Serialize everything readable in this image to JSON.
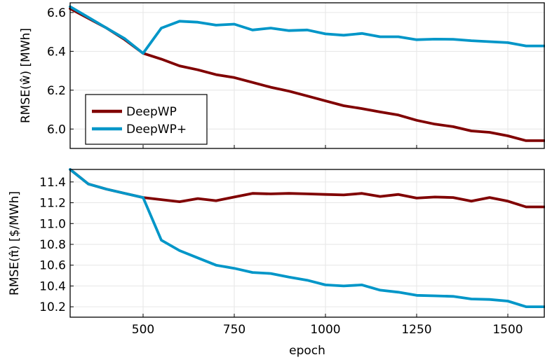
{
  "chart_data": [
    {
      "type": "line",
      "title": "",
      "xlabel": "",
      "ylabel": "RMSE(ŵ) [MWh]",
      "xlim": [
        300,
        1600
      ],
      "ylim": [
        5.9,
        6.65
      ],
      "xticks": [
        500,
        750,
        1000,
        1250,
        1500
      ],
      "yticks": [
        6.0,
        6.2,
        6.4,
        6.6
      ],
      "ytick_labels": [
        "6.0",
        "6.2",
        "6.4",
        "6.6"
      ],
      "show_xtick_labels": false,
      "grid": true,
      "legend": "bottom-left",
      "x": [
        300,
        350,
        400,
        450,
        500,
        550,
        600,
        650,
        700,
        750,
        800,
        850,
        900,
        950,
        1000,
        1050,
        1100,
        1150,
        1200,
        1250,
        1300,
        1350,
        1400,
        1450,
        1500,
        1550,
        1600
      ],
      "series": [
        {
          "name": "DeepWP",
          "color": "#800000",
          "values": [
            6.62,
            6.57,
            6.52,
            6.46,
            6.39,
            6.36,
            6.325,
            6.305,
            6.28,
            6.265,
            6.24,
            6.215,
            6.195,
            6.17,
            6.145,
            6.12,
            6.105,
            6.088,
            6.072,
            6.045,
            6.025,
            6.012,
            5.99,
            5.983,
            5.965,
            5.94,
            5.94
          ]
        },
        {
          "name": "DeepWP+",
          "color": "#0096c8",
          "values": [
            6.63,
            6.575,
            6.52,
            6.465,
            6.39,
            6.52,
            6.555,
            6.55,
            6.535,
            6.54,
            6.51,
            6.52,
            6.507,
            6.51,
            6.49,
            6.483,
            6.492,
            6.475,
            6.475,
            6.46,
            6.463,
            6.462,
            6.455,
            6.45,
            6.445,
            6.428,
            6.428
          ]
        }
      ]
    },
    {
      "type": "line",
      "title": "",
      "xlabel": "epoch",
      "ylabel": "RMSE(π̂) [$/MWh]",
      "xlim": [
        300,
        1600
      ],
      "ylim": [
        10.1,
        11.52
      ],
      "xticks": [
        500,
        750,
        1000,
        1250,
        1500
      ],
      "xtick_labels": [
        "500",
        "750",
        "1000",
        "1250",
        "1500"
      ],
      "yticks": [
        10.2,
        10.4,
        10.6,
        10.8,
        11.0,
        11.2,
        11.4
      ],
      "ytick_labels": [
        "10.2",
        "10.4",
        "10.6",
        "10.8",
        "11.0",
        "11.2",
        "11.4"
      ],
      "show_xtick_labels": true,
      "grid": true,
      "x": [
        300,
        350,
        400,
        450,
        500,
        550,
        600,
        650,
        700,
        750,
        800,
        850,
        900,
        950,
        1000,
        1050,
        1100,
        1150,
        1200,
        1250,
        1300,
        1350,
        1400,
        1450,
        1500,
        1550,
        1600
      ],
      "series": [
        {
          "name": "DeepWP",
          "color": "#800000",
          "values": [
            11.52,
            11.38,
            11.33,
            11.29,
            11.25,
            11.23,
            11.21,
            11.24,
            11.22,
            11.255,
            11.29,
            11.285,
            11.29,
            11.285,
            11.28,
            11.275,
            11.29,
            11.26,
            11.28,
            11.245,
            11.255,
            11.25,
            11.215,
            11.25,
            11.215,
            11.16,
            11.16
          ]
        },
        {
          "name": "DeepWP+",
          "color": "#0096c8",
          "values": [
            11.52,
            11.38,
            11.33,
            11.29,
            11.25,
            10.84,
            10.74,
            10.67,
            10.6,
            10.57,
            10.53,
            10.52,
            10.485,
            10.455,
            10.41,
            10.4,
            10.41,
            10.36,
            10.34,
            10.31,
            10.305,
            10.3,
            10.275,
            10.27,
            10.255,
            10.2,
            10.2
          ]
        }
      ]
    }
  ]
}
